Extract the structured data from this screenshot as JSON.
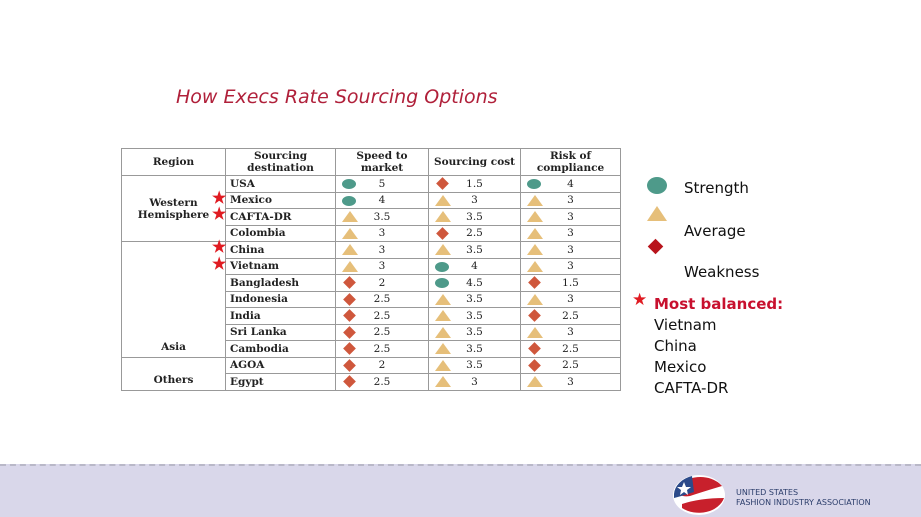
{
  "title": "How Execs Rate Sourcing Options",
  "headers": [
    "Region",
    "Sourcing destination",
    "Speed to market",
    "Sourcing cost",
    "Risk of compliance"
  ],
  "colors": {
    "strength": "#4e9a8a",
    "average": "#e6bf7a",
    "weakness": "#cf573c",
    "star": "#e01b22"
  },
  "groups": [
    {
      "region": "Western Hemisphere",
      "rows": [
        {
          "dest": "USA",
          "star": false,
          "cells": [
            [
              "S",
              "5"
            ],
            [
              "W",
              "1.5"
            ],
            [
              "S",
              "4"
            ]
          ]
        },
        {
          "dest": "Mexico",
          "star": true,
          "cells": [
            [
              "S",
              "4"
            ],
            [
              "A",
              "3"
            ],
            [
              "A",
              "3"
            ]
          ]
        },
        {
          "dest": "CAFTA-DR",
          "star": true,
          "cells": [
            [
              "A",
              "3.5"
            ],
            [
              "A",
              "3.5"
            ],
            [
              "A",
              "3"
            ]
          ]
        },
        {
          "dest": "Colombia",
          "star": false,
          "cells": [
            [
              "A",
              "3"
            ],
            [
              "W",
              "2.5"
            ],
            [
              "A",
              "3"
            ]
          ]
        }
      ]
    },
    {
      "region": "Asia",
      "rows": [
        {
          "dest": "China",
          "star": true,
          "cells": [
            [
              "A",
              "3"
            ],
            [
              "A",
              "3.5"
            ],
            [
              "A",
              "3"
            ]
          ]
        },
        {
          "dest": "Vietnam",
          "star": true,
          "cells": [
            [
              "A",
              "3"
            ],
            [
              "S",
              "4"
            ],
            [
              "A",
              "3"
            ]
          ]
        },
        {
          "dest": "Bangladesh",
          "star": false,
          "cells": [
            [
              "W",
              "2"
            ],
            [
              "S",
              "4.5"
            ],
            [
              "W",
              "1.5"
            ]
          ]
        },
        {
          "dest": "Indonesia",
          "star": false,
          "cells": [
            [
              "W",
              "2.5"
            ],
            [
              "A",
              "3.5"
            ],
            [
              "A",
              "3"
            ]
          ]
        },
        {
          "dest": "India",
          "star": false,
          "cells": [
            [
              "W",
              "2.5"
            ],
            [
              "A",
              "3.5"
            ],
            [
              "W",
              "2.5"
            ]
          ]
        },
        {
          "dest": "Sri Lanka",
          "star": false,
          "cells": [
            [
              "W",
              "2.5"
            ],
            [
              "A",
              "3.5"
            ],
            [
              "A",
              "3"
            ]
          ]
        },
        {
          "dest": "Cambodia",
          "star": false,
          "cells": [
            [
              "W",
              "2.5"
            ],
            [
              "A",
              "3.5"
            ],
            [
              "W",
              "2.5"
            ]
          ]
        }
      ]
    },
    {
      "region": "Others",
      "rows": [
        {
          "dest": "AGOA",
          "star": false,
          "cells": [
            [
              "W",
              "2"
            ],
            [
              "A",
              "3.5"
            ],
            [
              "W",
              "2.5"
            ]
          ]
        },
        {
          "dest": "Egypt",
          "star": false,
          "cells": [
            [
              "W",
              "2.5"
            ],
            [
              "A",
              "3"
            ],
            [
              "A",
              "3"
            ]
          ]
        }
      ]
    }
  ],
  "legend": {
    "strength": "Strength",
    "average": "Average",
    "weakness": "Weakness",
    "balanced_title": "Most balanced:",
    "balanced": [
      "Vietnam",
      "China",
      "Mexico",
      "CAFTA-DR"
    ]
  },
  "footer": {
    "org_line1": "UNITED STATES",
    "org_line2": "FASHION INDUSTRY ASSOCIATION"
  }
}
